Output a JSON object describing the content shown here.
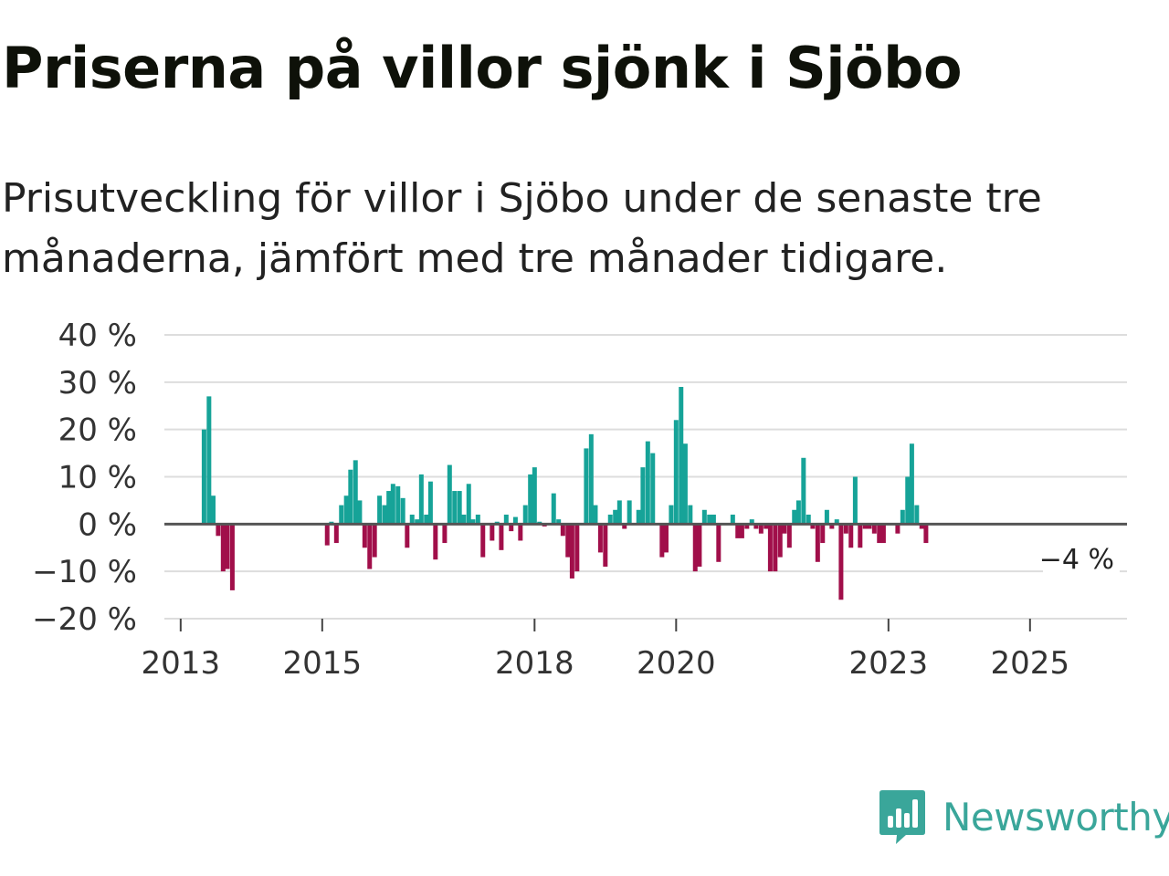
{
  "title": "Priserna på villor sjönk i Sjöbo",
  "subtitle": "Prisutveckling för villor i Sjöbo under de senaste tre månaderna, jämfört med tre månader tidigare.",
  "brand": {
    "name": "Newsworthy",
    "icon": "newsworthy-logo-icon",
    "color": "#3aa69a"
  },
  "colors": {
    "positive": "#16a398",
    "negative": "#a10f4a",
    "grid": "#dddddd",
    "zero_line": "#555555"
  },
  "chart_data": {
    "type": "bar",
    "title": "Priserna på villor sjönk i Sjöbo",
    "xlabel": "",
    "ylabel": "",
    "unit": "%",
    "ylim": [
      -20,
      40
    ],
    "y_ticks": [
      40,
      30,
      20,
      10,
      0,
      -10,
      -20
    ],
    "y_tick_labels": [
      "40 %",
      "30 %",
      "20 %",
      "10 %",
      "0 %",
      "−10 %",
      "−20 %"
    ],
    "x_ticks": [
      2013,
      2015,
      2018,
      2020,
      2023,
      2025
    ],
    "x_range": [
      2012.77,
      2026.37
    ],
    "last_value_label": "−4 %",
    "series": [
      {
        "name": "Prisutveckling",
        "points": [
          [
            2013.33,
            20
          ],
          [
            2013.4,
            27
          ],
          [
            2013.46,
            6
          ],
          [
            2013.53,
            -2.5
          ],
          [
            2013.6,
            -10
          ],
          [
            2013.66,
            -9.5
          ],
          [
            2013.73,
            -14
          ],
          [
            2015.07,
            -4.5
          ],
          [
            2015.13,
            0.5
          ],
          [
            2015.2,
            -4
          ],
          [
            2015.27,
            4
          ],
          [
            2015.34,
            6
          ],
          [
            2015.4,
            11.5
          ],
          [
            2015.47,
            13.5
          ],
          [
            2015.53,
            5
          ],
          [
            2015.6,
            -5
          ],
          [
            2015.67,
            -9.5
          ],
          [
            2015.74,
            -7
          ],
          [
            2015.81,
            6
          ],
          [
            2015.88,
            4
          ],
          [
            2015.94,
            7
          ],
          [
            2016.0,
            8.5
          ],
          [
            2016.07,
            8
          ],
          [
            2016.14,
            5.5
          ],
          [
            2016.2,
            -5
          ],
          [
            2016.27,
            2
          ],
          [
            2016.34,
            1
          ],
          [
            2016.4,
            10.5
          ],
          [
            2016.47,
            2
          ],
          [
            2016.53,
            9
          ],
          [
            2016.6,
            -7.5
          ],
          [
            2016.73,
            -4
          ],
          [
            2016.8,
            12.5
          ],
          [
            2016.87,
            7
          ],
          [
            2016.94,
            7
          ],
          [
            2017.0,
            2
          ],
          [
            2017.07,
            8.5
          ],
          [
            2017.13,
            1
          ],
          [
            2017.2,
            2
          ],
          [
            2017.27,
            -7
          ],
          [
            2017.4,
            -3.5
          ],
          [
            2017.47,
            0.5
          ],
          [
            2017.53,
            -5.5
          ],
          [
            2017.6,
            2
          ],
          [
            2017.67,
            -1.5
          ],
          [
            2017.73,
            1.5
          ],
          [
            2017.8,
            -3.5
          ],
          [
            2017.87,
            4
          ],
          [
            2017.94,
            10.5
          ],
          [
            2018.0,
            12
          ],
          [
            2018.07,
            0.5
          ],
          [
            2018.14,
            -0.5
          ],
          [
            2018.27,
            6.5
          ],
          [
            2018.34,
            1
          ],
          [
            2018.4,
            -2.5
          ],
          [
            2018.47,
            -7
          ],
          [
            2018.53,
            -11.5
          ],
          [
            2018.6,
            -10
          ],
          [
            2018.73,
            16
          ],
          [
            2018.8,
            19
          ],
          [
            2018.86,
            4
          ],
          [
            2018.93,
            -6
          ],
          [
            2019.0,
            -9
          ],
          [
            2019.07,
            2
          ],
          [
            2019.14,
            3
          ],
          [
            2019.2,
            5
          ],
          [
            2019.27,
            -1
          ],
          [
            2019.34,
            5
          ],
          [
            2019.47,
            3
          ],
          [
            2019.53,
            12
          ],
          [
            2019.6,
            17.5
          ],
          [
            2019.67,
            15
          ],
          [
            2019.8,
            -7
          ],
          [
            2019.86,
            -6
          ],
          [
            2019.93,
            4
          ],
          [
            2020.0,
            22
          ],
          [
            2020.07,
            29
          ],
          [
            2020.13,
            17
          ],
          [
            2020.2,
            4
          ],
          [
            2020.27,
            -10
          ],
          [
            2020.33,
            -9
          ],
          [
            2020.4,
            3
          ],
          [
            2020.47,
            2
          ],
          [
            2020.53,
            2
          ],
          [
            2020.6,
            -8
          ],
          [
            2020.8,
            2
          ],
          [
            2020.87,
            -3
          ],
          [
            2020.93,
            -3
          ],
          [
            2021.0,
            -1
          ],
          [
            2021.07,
            1
          ],
          [
            2021.13,
            -1
          ],
          [
            2021.2,
            -2
          ],
          [
            2021.27,
            -1
          ],
          [
            2021.33,
            -10
          ],
          [
            2021.4,
            -10
          ],
          [
            2021.47,
            -7
          ],
          [
            2021.53,
            -2
          ],
          [
            2021.6,
            -5
          ],
          [
            2021.67,
            3
          ],
          [
            2021.73,
            5
          ],
          [
            2021.8,
            14
          ],
          [
            2021.87,
            2
          ],
          [
            2021.93,
            -1
          ],
          [
            2022.0,
            -8
          ],
          [
            2022.07,
            -4
          ],
          [
            2022.13,
            3
          ],
          [
            2022.2,
            -1
          ],
          [
            2022.27,
            1
          ],
          [
            2022.33,
            -16
          ],
          [
            2022.4,
            -2
          ],
          [
            2022.47,
            -5
          ],
          [
            2022.53,
            10
          ],
          [
            2022.6,
            -5
          ],
          [
            2022.67,
            -1
          ],
          [
            2022.73,
            -1
          ],
          [
            2022.8,
            -2
          ],
          [
            2022.87,
            -4
          ],
          [
            2022.93,
            -4
          ],
          [
            2023.13,
            -2
          ],
          [
            2023.2,
            3
          ],
          [
            2023.27,
            10
          ],
          [
            2023.33,
            17
          ],
          [
            2023.4,
            4
          ],
          [
            2023.47,
            -1
          ],
          [
            2023.53,
            -4
          ]
        ]
      }
    ]
  }
}
